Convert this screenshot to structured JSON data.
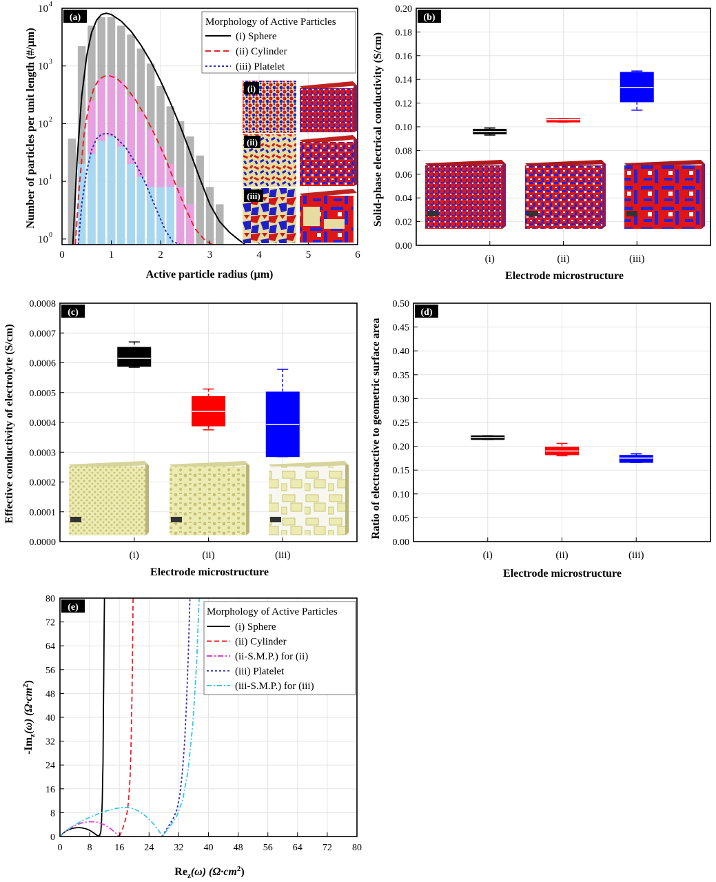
{
  "chart_data": [
    {
      "id": "a",
      "panel_label": "(a)",
      "type": "bar",
      "scale_y": "log",
      "xlabel": "Active particle radius (µm)",
      "ylabel": "Number of particles per unit length (#/µm)",
      "xlim": [
        0,
        6
      ],
      "ylim": [
        0.8,
        10000
      ],
      "xticks": [
        "0",
        "1",
        "2",
        "3",
        "4",
        "5",
        "6"
      ],
      "yticks": [
        {
          "value": 1,
          "base": "10",
          "exp": "0"
        },
        {
          "value": 10,
          "base": "10",
          "exp": "1"
        },
        {
          "value": 100,
          "base": "10",
          "exp": "2"
        },
        {
          "value": 1000,
          "base": "10",
          "exp": "3"
        },
        {
          "value": 10000,
          "base": "10",
          "exp": "4"
        }
      ],
      "bar_width": 0.16,
      "legend_title": "Morphology of Active Particles",
      "legend": [
        {
          "label": "(i) Sphere",
          "color": "#000000",
          "dash": "none"
        },
        {
          "label": "(ii) Cylinder",
          "color": "#e8232b",
          "dash": "8,5"
        },
        {
          "label": "(iii) Platelet",
          "color": "#2b2bb5",
          "dash": "3,3"
        }
      ],
      "series": [
        {
          "name": "(i) Sphere bars",
          "color": "#b3b3b3",
          "x": [
            0.2,
            0.4,
            0.6,
            0.8,
            1.0,
            1.2,
            1.4,
            1.6,
            1.8,
            2.0,
            2.2,
            2.4,
            2.6,
            2.8,
            3.0,
            3.2
          ],
          "values": [
            55,
            2200,
            5000,
            7000,
            7000,
            5000,
            3500,
            2000,
            1100,
            450,
            200,
            110,
            60,
            28,
            8,
            4
          ]
        },
        {
          "name": "(ii) Cylinder bars",
          "color": "#e7a0e0",
          "x": [
            0.6,
            0.8,
            1.0,
            1.2,
            1.4,
            1.6,
            1.8,
            2.0,
            2.2,
            2.4,
            2.6
          ],
          "values": [
            250,
            600,
            700,
            550,
            300,
            160,
            80,
            40,
            20,
            8,
            4
          ]
        },
        {
          "name": "(iii) Platelet bars",
          "color": "#a8d8f0",
          "x": [
            0.4,
            0.6,
            0.8,
            1.0,
            1.2,
            1.4,
            1.6,
            1.8,
            2.0,
            2.2
          ],
          "values": [
            20,
            30,
            50,
            60,
            40,
            20,
            12,
            8,
            8,
            8
          ]
        }
      ],
      "curves": [
        {
          "name": "(i) Sphere",
          "color": "#000000",
          "dash": "none",
          "x": [
            0.22,
            0.3,
            0.4,
            0.5,
            0.6,
            0.7,
            0.8,
            0.9,
            1.0,
            1.2,
            1.4,
            1.6,
            1.8,
            2.0,
            2.2,
            2.4,
            2.6,
            2.8,
            3.0,
            3.2,
            3.4,
            3.6,
            3.72
          ],
          "y": [
            0.8,
            20,
            300,
            1500,
            3800,
            6200,
            7800,
            8200,
            7800,
            6000,
            4000,
            2300,
            1200,
            550,
            230,
            90,
            32,
            11,
            4,
            2,
            1.3,
            0.95,
            0.8
          ]
        },
        {
          "name": "(ii) Cylinder",
          "color": "#e8232b",
          "dash": "8,5",
          "x": [
            0.27,
            0.35,
            0.45,
            0.55,
            0.65,
            0.75,
            0.85,
            0.95,
            1.1,
            1.3,
            1.5,
            1.7,
            1.9,
            2.1,
            2.3,
            2.5,
            2.7,
            2.9,
            3.05
          ],
          "y": [
            0.8,
            8,
            70,
            220,
            420,
            580,
            660,
            680,
            620,
            430,
            250,
            130,
            60,
            25,
            9,
            3.5,
            1.5,
            0.95,
            0.8
          ]
        },
        {
          "name": "(iii) Platelet",
          "color": "#2b2bb5",
          "dash": "3,3",
          "x": [
            0.33,
            0.4,
            0.5,
            0.6,
            0.7,
            0.8,
            0.9,
            1.0,
            1.1,
            1.3,
            1.5,
            1.7,
            1.9,
            2.1,
            2.25,
            2.4
          ],
          "y": [
            0.8,
            4,
            15,
            35,
            55,
            65,
            68,
            65,
            57,
            38,
            20,
            9,
            3.5,
            1.4,
            0.9,
            0.8
          ]
        }
      ],
      "insets": [
        {
          "label": "(i)"
        },
        {
          "label": "(ii)"
        },
        {
          "label": "(iii)"
        }
      ]
    },
    {
      "id": "b",
      "panel_label": "(b)",
      "type": "box",
      "xlabel": "Electrode microstructure",
      "ylabel": "Solid-phase electrical conductivity (S/cm)",
      "ylim": [
        0,
        0.2
      ],
      "yticks": [
        "0.00",
        "0.02",
        "0.04",
        "0.06",
        "0.08",
        "0.10",
        "0.12",
        "0.14",
        "0.16",
        "0.18",
        "0.20"
      ],
      "categories": [
        "(i)",
        "(ii)",
        "(iii)"
      ],
      "boxes": [
        {
          "min": 0.093,
          "q1": 0.094,
          "median": 0.096,
          "q3": 0.098,
          "max": 0.099,
          "color": "#000000"
        },
        {
          "min": 0.104,
          "q1": 0.104,
          "median": 0.106,
          "q3": 0.107,
          "max": 0.107,
          "color": "#ff0000"
        },
        {
          "min": 0.114,
          "q1": 0.121,
          "median": 0.133,
          "q3": 0.146,
          "max": 0.147,
          "color": "#0000ff"
        }
      ]
    },
    {
      "id": "c",
      "panel_label": "(c)",
      "type": "box",
      "xlabel": "Electrode microstructure",
      "ylabel": "Effective conductivity of electrolyte (S/cm)",
      "ylim": [
        0,
        0.0008
      ],
      "yticks": [
        "0.0000",
        "0.0001",
        "0.0002",
        "0.0003",
        "0.0004",
        "0.0005",
        "0.0006",
        "0.0007",
        "0.0008"
      ],
      "categories": [
        "(i)",
        "(ii)",
        "(iii)"
      ],
      "boxes": [
        {
          "min": 0.000585,
          "q1": 0.000588,
          "median": 0.000615,
          "q3": 0.000652,
          "max": 0.00067,
          "color": "#000000"
        },
        {
          "min": 0.000375,
          "q1": 0.000388,
          "median": 0.000437,
          "q3": 0.000487,
          "max": 0.000512,
          "color": "#ff0000"
        },
        {
          "min": 0.000285,
          "q1": 0.000285,
          "median": 0.000393,
          "q3": 0.000502,
          "max": 0.000578,
          "color": "#0000ff"
        }
      ]
    },
    {
      "id": "d",
      "panel_label": "(d)",
      "type": "box",
      "xlabel": "Electrode microstructure",
      "ylabel": "Ratio of electroactive to geometric surface area",
      "ylim": [
        0,
        0.5
      ],
      "yticks": [
        "0.00",
        "0.05",
        "0.10",
        "0.15",
        "0.20",
        "0.25",
        "0.30",
        "0.35",
        "0.40",
        "0.45",
        "0.50"
      ],
      "categories": [
        "(i)",
        "(ii)",
        "(iii)"
      ],
      "boxes": [
        {
          "min": 0.214,
          "q1": 0.214,
          "median": 0.218,
          "q3": 0.222,
          "max": 0.222,
          "color": "#000000"
        },
        {
          "min": 0.18,
          "q1": 0.182,
          "median": 0.19,
          "q3": 0.198,
          "max": 0.206,
          "color": "#ff0000"
        },
        {
          "min": 0.166,
          "q1": 0.166,
          "median": 0.175,
          "q3": 0.181,
          "max": 0.184,
          "color": "#0000ff"
        }
      ]
    },
    {
      "id": "e",
      "panel_label": "(e)",
      "type": "line",
      "xlabel_main": "Re",
      "xlabel_sub": "z",
      "xlabel_rest": "(ω) (Ω·cm",
      "xlabel_sup": "2",
      "xlabel_end": ")",
      "ylabel_main": "-Im",
      "ylabel_sub": "z",
      "ylabel_rest": "(ω) (Ω·cm",
      "ylabel_sup": "2",
      "ylabel_end": ")",
      "xlim": [
        0,
        80
      ],
      "ylim": [
        0,
        80
      ],
      "xticks": [
        "0",
        "8",
        "16",
        "24",
        "32",
        "40",
        "48",
        "56",
        "64",
        "72",
        "80"
      ],
      "yticks": [
        "0",
        "8",
        "16",
        "24",
        "32",
        "40",
        "48",
        "56",
        "64",
        "72",
        "80"
      ],
      "legend_title": "Morphology of Active Particles",
      "series": [
        {
          "name": "(i) Sphere",
          "color": "#000000",
          "dash": "none",
          "x": [
            0,
            1,
            2,
            3,
            4,
            5,
            6,
            7,
            8,
            9,
            10,
            10.6,
            11,
            11.2,
            11.4,
            11.6,
            11.7,
            11.8,
            11.9,
            12.0
          ],
          "y": [
            0,
            1.3,
            2.1,
            2.6,
            2.9,
            3.0,
            2.9,
            2.6,
            2.1,
            1.3,
            0.4,
            0.1,
            1.5,
            5,
            12,
            25,
            40,
            55,
            70,
            80
          ]
        },
        {
          "name": "(ii) Cylinder",
          "color": "#e8232b",
          "dash": "7,4",
          "x": [
            16,
            16.5,
            17,
            17.5,
            18,
            18.3,
            18.6,
            18.9,
            19.1,
            19.3,
            19.5,
            19.7
          ],
          "y": [
            0,
            1.5,
            3,
            5,
            7.5,
            10,
            14,
            20,
            28,
            40,
            56,
            80
          ]
        },
        {
          "name": "(ii-S.M.P.) for (ii)",
          "color": "#e040d0",
          "dash": "8,3,2,3",
          "x": [
            0,
            2,
            4,
            6,
            8,
            10,
            12,
            13.5,
            15,
            15.6,
            16
          ],
          "y": [
            0,
            2.2,
            3.7,
            4.6,
            5.0,
            4.8,
            3.9,
            2.8,
            1.2,
            0.4,
            0
          ]
        },
        {
          "name": "(iii) Platelet",
          "color": "#2b2bb5",
          "dash": "3,3",
          "x": [
            27.5,
            28.5,
            29.5,
            30.5,
            31.5,
            32.3,
            33,
            33.6,
            34.1,
            34.6,
            35
          ],
          "y": [
            0,
            2,
            4,
            6,
            9,
            14,
            22,
            32,
            45,
            62,
            80
          ]
        },
        {
          "name": "(iii-S.M.P.) for (iii)",
          "color": "#38c8e8",
          "dash": "7,3,2,3",
          "x": [
            0,
            3,
            6,
            9,
            12,
            15,
            17,
            19,
            21,
            23,
            25,
            26.5,
            27.5,
            28.5,
            30,
            31.5,
            33,
            34.5,
            35.8,
            36.8,
            37.5
          ],
          "y": [
            0,
            3.2,
            5.3,
            7.0,
            8.4,
            9.4,
            9.8,
            9.6,
            8.7,
            7.0,
            4.5,
            2.2,
            0.2,
            1.5,
            4,
            7,
            12,
            22,
            38,
            58,
            80
          ]
        }
      ]
    }
  ]
}
